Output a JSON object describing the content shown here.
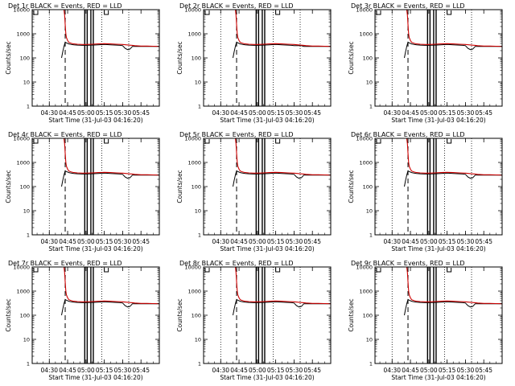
{
  "chart_data": {
    "type": "line",
    "y_scale": "log",
    "ylim": [
      1,
      10000
    ],
    "y_ticks": [
      "1",
      "10",
      "100",
      "1000",
      "10000"
    ],
    "ylabel": "Counts/sec",
    "xlabel": "Start Time (31-Jul-03 04:16:20)",
    "x_ticks": [
      "04:30",
      "04:45",
      "05:00",
      "05:15",
      "05:30",
      "05:45"
    ],
    "x_tick_minutes": [
      30,
      45,
      60,
      75,
      90,
      105
    ],
    "xlim_minutes": [
      16,
      120
    ],
    "x_units": "minutes after 04:00 on 31-Jul-03",
    "dotted_lines_minutes": [
      30,
      73,
      95
    ],
    "dashed_line_minutes": 43,
    "solid_lines_minutes": [
      59,
      61,
      64,
      66
    ],
    "colors": {
      "events": "#000000",
      "lld": "#cc0000"
    },
    "panels": [
      {
        "title": "Det 1r BLACK = Events, RED = LLD",
        "lld_scale": 1.0,
        "dip": true
      },
      {
        "title": "Det 2r BLACK = Events, RED = LLD",
        "lld_scale": 1.0,
        "dip": false
      },
      {
        "title": "Det 3r BLACK = Events, RED = LLD",
        "lld_scale": 1.0,
        "dip": true
      },
      {
        "title": "Det 4r BLACK = Events, RED = LLD",
        "lld_scale": 1.0,
        "dip": true
      },
      {
        "title": "Det 5r BLACK = Events, RED = LLD",
        "lld_scale": 1.0,
        "dip": true
      },
      {
        "title": "Det 6r BLACK = Events, RED = LLD",
        "lld_scale": 1.0,
        "dip": true
      },
      {
        "title": "Det 7r BLACK = Events, RED = LLD",
        "lld_scale": 1.0,
        "dip": true
      },
      {
        "title": "Det 8r BLACK = Events, RED = LLD",
        "lld_scale": 1.0,
        "dip": true
      },
      {
        "title": "Det 9r BLACK = Events, RED = LLD",
        "lld_scale": 1.0,
        "dip": true
      }
    ],
    "series": [
      {
        "name": "Events",
        "x": [
          40,
          41,
          42,
          43,
          44,
          46,
          48,
          50,
          53,
          57,
          60,
          65,
          70,
          75,
          80,
          85,
          88,
          90,
          92,
          94,
          96,
          98,
          100,
          105,
          110,
          115,
          120
        ],
        "y": [
          100,
          180,
          300,
          450,
          420,
          380,
          360,
          350,
          340,
          330,
          330,
          340,
          350,
          360,
          350,
          340,
          330,
          320,
          250,
          220,
          230,
          300,
          300,
          300,
          300,
          300,
          300
        ]
      },
      {
        "name": "LLD",
        "x": [
          42,
          42.5,
          43,
          43.5,
          44,
          45,
          46,
          48,
          50,
          53,
          57,
          60,
          65,
          70,
          75,
          80,
          85,
          90,
          95,
          98,
          100,
          105,
          110,
          115,
          120
        ],
        "y": [
          10000,
          6000,
          2500,
          1000,
          700,
          520,
          440,
          400,
          380,
          370,
          360,
          360,
          370,
          380,
          390,
          380,
          370,
          360,
          340,
          330,
          320,
          310,
          310,
          305,
          300
        ]
      }
    ]
  }
}
